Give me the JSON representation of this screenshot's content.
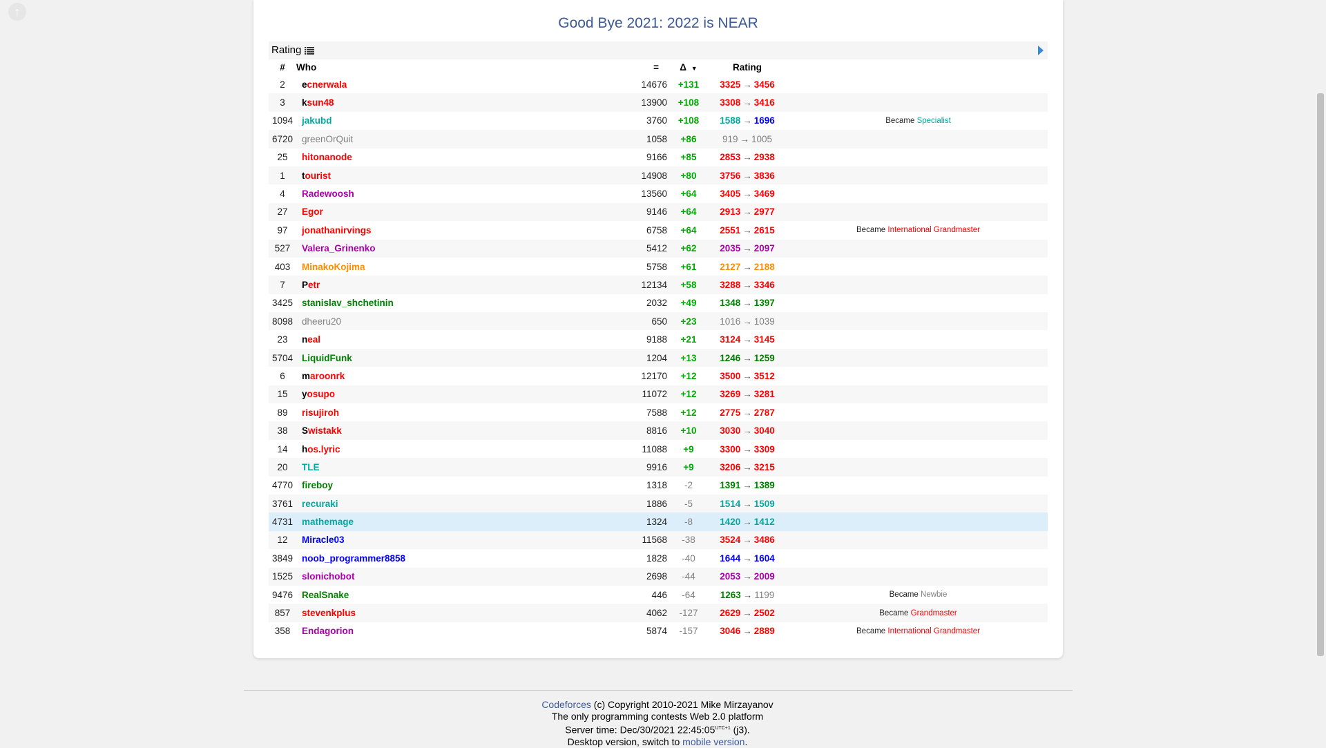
{
  "colors": {
    "legendary": "#ff0000",
    "red": "#ff0000",
    "orange": "#ff8c00",
    "violet": "#aa00aa",
    "blue": "#0000ff",
    "cyan": "#03a89e",
    "green": "#008000",
    "gray": "#808080",
    "delta_pos": "#00aa00",
    "delta_neg": "#808080"
  },
  "contest_title": "Good Bye 2021: 2022 is NEAR",
  "subhead": {
    "label": "Rating",
    "list_icon": "list-icon",
    "expand_icon": "play-icon"
  },
  "headers": {
    "rank": "#",
    "who": "Who",
    "score": "=",
    "delta": "Δ",
    "sort_icon": "sort-down-icon",
    "rating": "Rating"
  },
  "rows": [
    {
      "rank": "2",
      "handle": "ecnerwala",
      "color": "legendary",
      "score": "14676",
      "delta": "+131",
      "old": "3325",
      "old_color": "red",
      "new": "3456",
      "new_color": "red",
      "note_prefix": "",
      "note_title": "",
      "note_color": ""
    },
    {
      "rank": "3",
      "handle": "ksun48",
      "color": "legendary",
      "score": "13900",
      "delta": "+108",
      "old": "3308",
      "old_color": "red",
      "new": "3416",
      "new_color": "red",
      "note_prefix": "",
      "note_title": "",
      "note_color": ""
    },
    {
      "rank": "1094",
      "handle": "jakubd",
      "color": "cyan",
      "score": "3760",
      "delta": "+108",
      "old": "1588",
      "old_color": "cyan",
      "new": "1696",
      "new_color": "blue",
      "note_prefix": "Became",
      "note_title": "Specialist",
      "note_color": "cyan"
    },
    {
      "rank": "6720",
      "handle": "greenOrQuit",
      "color": "gray",
      "score": "1058",
      "delta": "+86",
      "old": "919",
      "old_color": "gray",
      "new": "1005",
      "new_color": "gray",
      "note_prefix": "",
      "note_title": "",
      "note_color": ""
    },
    {
      "rank": "25",
      "handle": "hitonanode",
      "color": "red",
      "score": "9166",
      "delta": "+85",
      "old": "2853",
      "old_color": "red",
      "new": "2938",
      "new_color": "red",
      "note_prefix": "",
      "note_title": "",
      "note_color": ""
    },
    {
      "rank": "1",
      "handle": "tourist",
      "color": "legendary",
      "score": "14908",
      "delta": "+80",
      "old": "3756",
      "old_color": "red",
      "new": "3836",
      "new_color": "red",
      "note_prefix": "",
      "note_title": "",
      "note_color": ""
    },
    {
      "rank": "4",
      "handle": "Radewoosh",
      "color": "violet",
      "score": "13560",
      "delta": "+64",
      "old": "3405",
      "old_color": "red",
      "new": "3469",
      "new_color": "red",
      "note_prefix": "",
      "note_title": "",
      "note_color": ""
    },
    {
      "rank": "27",
      "handle": "Egor",
      "color": "red",
      "score": "9146",
      "delta": "+64",
      "old": "2913",
      "old_color": "red",
      "new": "2977",
      "new_color": "red",
      "note_prefix": "",
      "note_title": "",
      "note_color": ""
    },
    {
      "rank": "97",
      "handle": "jonathanirvings",
      "color": "red",
      "score": "6758",
      "delta": "+64",
      "old": "2551",
      "old_color": "red",
      "new": "2615",
      "new_color": "red",
      "note_prefix": "Became",
      "note_title": "International Grandmaster",
      "note_color": "red"
    },
    {
      "rank": "527",
      "handle": "Valera_Grinenko",
      "color": "violet",
      "score": "5412",
      "delta": "+62",
      "old": "2035",
      "old_color": "violet",
      "new": "2097",
      "new_color": "violet",
      "note_prefix": "",
      "note_title": "",
      "note_color": ""
    },
    {
      "rank": "403",
      "handle": "MinakoKojima",
      "color": "orange",
      "score": "5758",
      "delta": "+61",
      "old": "2127",
      "old_color": "orange",
      "new": "2188",
      "new_color": "orange",
      "note_prefix": "",
      "note_title": "",
      "note_color": ""
    },
    {
      "rank": "7",
      "handle": "Petr",
      "color": "legendary",
      "score": "12134",
      "delta": "+58",
      "old": "3288",
      "old_color": "red",
      "new": "3346",
      "new_color": "red",
      "note_prefix": "",
      "note_title": "",
      "note_color": ""
    },
    {
      "rank": "3425",
      "handle": "stanislav_shchetinin",
      "color": "green",
      "score": "2032",
      "delta": "+49",
      "old": "1348",
      "old_color": "green",
      "new": "1397",
      "new_color": "green",
      "note_prefix": "",
      "note_title": "",
      "note_color": ""
    },
    {
      "rank": "8098",
      "handle": "dheeru20",
      "color": "gray",
      "score": "650",
      "delta": "+23",
      "old": "1016",
      "old_color": "gray",
      "new": "1039",
      "new_color": "gray",
      "note_prefix": "",
      "note_title": "",
      "note_color": ""
    },
    {
      "rank": "23",
      "handle": "neal",
      "color": "legendary",
      "score": "9188",
      "delta": "+21",
      "old": "3124",
      "old_color": "red",
      "new": "3145",
      "new_color": "red",
      "note_prefix": "",
      "note_title": "",
      "note_color": ""
    },
    {
      "rank": "5704",
      "handle": "LiquidFunk",
      "color": "green",
      "score": "1204",
      "delta": "+13",
      "old": "1246",
      "old_color": "green",
      "new": "1259",
      "new_color": "green",
      "note_prefix": "",
      "note_title": "",
      "note_color": ""
    },
    {
      "rank": "6",
      "handle": "maroonrk",
      "color": "legendary",
      "score": "12170",
      "delta": "+12",
      "old": "3500",
      "old_color": "red",
      "new": "3512",
      "new_color": "red",
      "note_prefix": "",
      "note_title": "",
      "note_color": ""
    },
    {
      "rank": "15",
      "handle": "yosupo",
      "color": "legendary",
      "score": "11072",
      "delta": "+12",
      "old": "3269",
      "old_color": "red",
      "new": "3281",
      "new_color": "red",
      "note_prefix": "",
      "note_title": "",
      "note_color": ""
    },
    {
      "rank": "89",
      "handle": "risujiroh",
      "color": "red",
      "score": "7588",
      "delta": "+12",
      "old": "2775",
      "old_color": "red",
      "new": "2787",
      "new_color": "red",
      "note_prefix": "",
      "note_title": "",
      "note_color": ""
    },
    {
      "rank": "38",
      "handle": "Swistakk",
      "color": "legendary",
      "score": "8816",
      "delta": "+10",
      "old": "3030",
      "old_color": "red",
      "new": "3040",
      "new_color": "red",
      "note_prefix": "",
      "note_title": "",
      "note_color": ""
    },
    {
      "rank": "14",
      "handle": "hos.lyric",
      "color": "legendary",
      "score": "11088",
      "delta": "+9",
      "old": "3300",
      "old_color": "red",
      "new": "3309",
      "new_color": "red",
      "note_prefix": "",
      "note_title": "",
      "note_color": ""
    },
    {
      "rank": "20",
      "handle": "TLE",
      "color": "cyan",
      "score": "9916",
      "delta": "+9",
      "old": "3206",
      "old_color": "red",
      "new": "3215",
      "new_color": "red",
      "note_prefix": "",
      "note_title": "",
      "note_color": ""
    },
    {
      "rank": "4770",
      "handle": "fireboy",
      "color": "green",
      "score": "1318",
      "delta": "-2",
      "old": "1391",
      "old_color": "green",
      "new": "1389",
      "new_color": "green",
      "note_prefix": "",
      "note_title": "",
      "note_color": ""
    },
    {
      "rank": "3761",
      "handle": "recuraki",
      "color": "cyan",
      "score": "1886",
      "delta": "-5",
      "old": "1514",
      "old_color": "cyan",
      "new": "1509",
      "new_color": "cyan",
      "note_prefix": "",
      "note_title": "",
      "note_color": ""
    },
    {
      "rank": "4731",
      "handle": "mathemage",
      "color": "cyan",
      "score": "1324",
      "delta": "-8",
      "old": "1420",
      "old_color": "cyan",
      "new": "1412",
      "new_color": "cyan",
      "note_prefix": "",
      "note_title": "",
      "note_color": "",
      "highlight": true
    },
    {
      "rank": "12",
      "handle": "Miracle03",
      "color": "blue",
      "score": "11568",
      "delta": "-38",
      "old": "3524",
      "old_color": "red",
      "new": "3486",
      "new_color": "red",
      "note_prefix": "",
      "note_title": "",
      "note_color": ""
    },
    {
      "rank": "3849",
      "handle": "noob_programmer8858",
      "color": "blue",
      "score": "1828",
      "delta": "-40",
      "old": "1644",
      "old_color": "blue",
      "new": "1604",
      "new_color": "blue",
      "note_prefix": "",
      "note_title": "",
      "note_color": ""
    },
    {
      "rank": "1525",
      "handle": "slonichobot",
      "color": "violet",
      "score": "2698",
      "delta": "-44",
      "old": "2053",
      "old_color": "violet",
      "new": "2009",
      "new_color": "violet",
      "note_prefix": "",
      "note_title": "",
      "note_color": ""
    },
    {
      "rank": "9476",
      "handle": "RealSnake",
      "color": "green",
      "score": "446",
      "delta": "-64",
      "old": "1263",
      "old_color": "green",
      "new": "1199",
      "new_color": "gray",
      "note_prefix": "Became",
      "note_title": "Newbie",
      "note_color": "gray"
    },
    {
      "rank": "857",
      "handle": "stevenkplus",
      "color": "red",
      "score": "4062",
      "delta": "-127",
      "old": "2629",
      "old_color": "red",
      "new": "2502",
      "new_color": "red",
      "note_prefix": "Became",
      "note_title": "Grandmaster",
      "note_color": "red"
    },
    {
      "rank": "358",
      "handle": "Endagorion",
      "color": "violet",
      "score": "5874",
      "delta": "-157",
      "old": "3046",
      "old_color": "red",
      "new": "2889",
      "new_color": "red",
      "note_prefix": "Became",
      "note_title": "International Grandmaster",
      "note_color": "red"
    }
  ],
  "footer": {
    "site_link": "Codeforces",
    "copyright": "(c) Copyright 2010-2021 Mike Mirzayanov",
    "tagline": "The only programming contests Web 2.0 platform",
    "server_time_label": "Server time: Dec/30/2021 22:45:05",
    "utc": "UTC+1",
    "build": "(j3).",
    "desktop_text": "Desktop version, switch to",
    "mobile_link": "mobile version",
    "period": "."
  }
}
